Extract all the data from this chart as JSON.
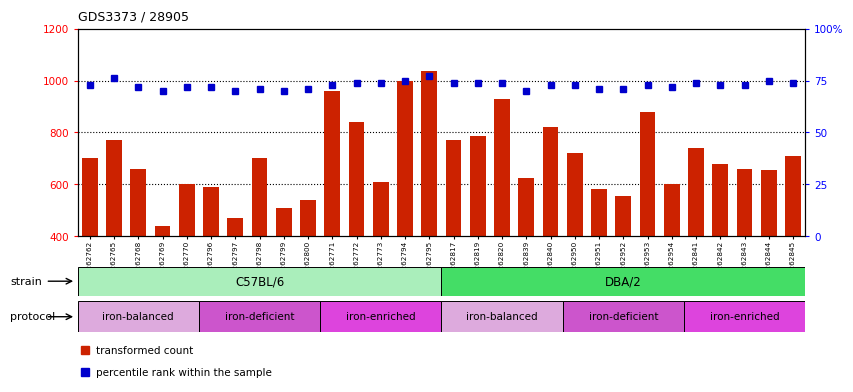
{
  "title": "GDS3373 / 28905",
  "samples": [
    "GSM262762",
    "GSM262765",
    "GSM262768",
    "GSM262769",
    "GSM262770",
    "GSM262796",
    "GSM262797",
    "GSM262798",
    "GSM262799",
    "GSM262800",
    "GSM262771",
    "GSM262772",
    "GSM262773",
    "GSM262794",
    "GSM262795",
    "GSM262817",
    "GSM262819",
    "GSM262820",
    "GSM262839",
    "GSM262840",
    "GSM262950",
    "GSM262951",
    "GSM262952",
    "GSM262953",
    "GSM262954",
    "GSM262841",
    "GSM262842",
    "GSM262843",
    "GSM262844",
    "GSM262845"
  ],
  "bar_values": [
    700,
    770,
    660,
    440,
    600,
    590,
    470,
    700,
    510,
    540,
    960,
    840,
    610,
    1000,
    1035,
    770,
    785,
    930,
    625,
    820,
    720,
    580,
    555,
    880,
    600,
    740,
    680,
    660,
    655,
    710
  ],
  "percentile_values": [
    73,
    76,
    72,
    70,
    72,
    72,
    70,
    71,
    70,
    71,
    73,
    74,
    74,
    75,
    77,
    74,
    74,
    74,
    70,
    73,
    73,
    71,
    71,
    73,
    72,
    74,
    73,
    73,
    75,
    74
  ],
  "bar_color": "#cc2200",
  "dot_color": "#0000cc",
  "ylim_left": [
    400,
    1200
  ],
  "ylim_right": [
    0,
    100
  ],
  "yticks_left": [
    400,
    600,
    800,
    1000,
    1200
  ],
  "yticks_right": [
    0,
    25,
    50,
    75,
    100
  ],
  "ytick_labels_right": [
    "0",
    "25",
    "50",
    "75",
    "100%"
  ],
  "grid_values": [
    600,
    800,
    1000
  ],
  "strain_groups": [
    {
      "label": "C57BL/6",
      "start": 0,
      "end": 15,
      "color": "#aaeebb"
    },
    {
      "label": "DBA/2",
      "start": 15,
      "end": 30,
      "color": "#44dd66"
    }
  ],
  "protocol_groups": [
    {
      "label": "iron-balanced",
      "start": 0,
      "end": 5,
      "color": "#ddaadd"
    },
    {
      "label": "iron-deficient",
      "start": 5,
      "end": 10,
      "color": "#cc55cc"
    },
    {
      "label": "iron-enriched",
      "start": 10,
      "end": 15,
      "color": "#dd44dd"
    },
    {
      "label": "iron-balanced",
      "start": 15,
      "end": 20,
      "color": "#ddaadd"
    },
    {
      "label": "iron-deficient",
      "start": 20,
      "end": 25,
      "color": "#cc55cc"
    },
    {
      "label": "iron-enriched",
      "start": 25,
      "end": 30,
      "color": "#dd44dd"
    }
  ],
  "legend_items": [
    {
      "label": "transformed count",
      "color": "#cc2200"
    },
    {
      "label": "percentile rank within the sample",
      "color": "#0000cc"
    }
  ],
  "strain_label": "strain",
  "protocol_label": "protocol"
}
